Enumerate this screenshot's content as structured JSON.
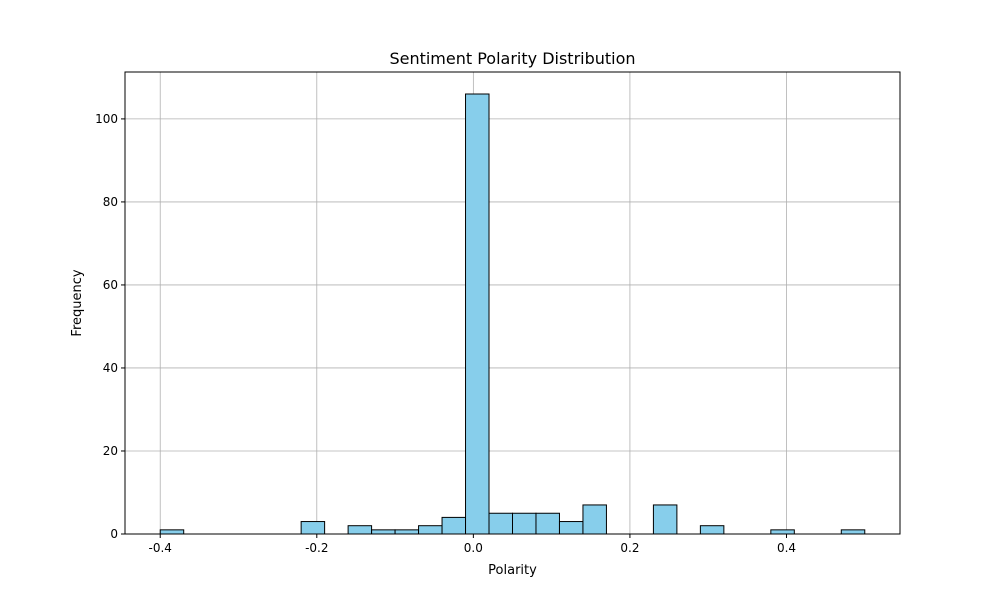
{
  "chart_data": {
    "type": "bar",
    "title": "Sentiment Polarity Distribution",
    "xlabel": "Polarity",
    "ylabel": "Frequency",
    "xlim": [
      -0.445,
      0.545
    ],
    "ylim": [
      0,
      111.3
    ],
    "xticks": [
      -0.4,
      -0.2,
      0.0,
      0.2,
      0.4
    ],
    "xtick_labels": [
      "-0.4",
      "-0.2",
      "0.0",
      "0.2",
      "0.4"
    ],
    "yticks": [
      0,
      20,
      40,
      60,
      80,
      100
    ],
    "ytick_labels": [
      "0",
      "20",
      "40",
      "60",
      "80",
      "100"
    ],
    "grid": true,
    "bar_color": "#87CEEB",
    "edge_color": "#000000",
    "bins": [
      {
        "x0": -0.4,
        "x1": -0.37,
        "value": 1
      },
      {
        "x0": -0.37,
        "x1": -0.34,
        "value": 0
      },
      {
        "x0": -0.34,
        "x1": -0.31,
        "value": 0
      },
      {
        "x0": -0.31,
        "x1": -0.28,
        "value": 0
      },
      {
        "x0": -0.28,
        "x1": -0.25,
        "value": 0
      },
      {
        "x0": -0.25,
        "x1": -0.22,
        "value": 0
      },
      {
        "x0": -0.22,
        "x1": -0.19,
        "value": 3
      },
      {
        "x0": -0.19,
        "x1": -0.16,
        "value": 0
      },
      {
        "x0": -0.16,
        "x1": -0.13,
        "value": 2
      },
      {
        "x0": -0.13,
        "x1": -0.1,
        "value": 1
      },
      {
        "x0": -0.1,
        "x1": -0.07,
        "value": 1
      },
      {
        "x0": -0.07,
        "x1": -0.04,
        "value": 2
      },
      {
        "x0": -0.04,
        "x1": -0.01,
        "value": 4
      },
      {
        "x0": -0.01,
        "x1": 0.02,
        "value": 106
      },
      {
        "x0": 0.02,
        "x1": 0.05,
        "value": 5
      },
      {
        "x0": 0.05,
        "x1": 0.08,
        "value": 5
      },
      {
        "x0": 0.08,
        "x1": 0.11,
        "value": 5
      },
      {
        "x0": 0.11,
        "x1": 0.14,
        "value": 3
      },
      {
        "x0": 0.14,
        "x1": 0.17,
        "value": 7
      },
      {
        "x0": 0.17,
        "x1": 0.2,
        "value": 0
      },
      {
        "x0": 0.2,
        "x1": 0.23,
        "value": 0
      },
      {
        "x0": 0.23,
        "x1": 0.26,
        "value": 7
      },
      {
        "x0": 0.26,
        "x1": 0.29,
        "value": 0
      },
      {
        "x0": 0.29,
        "x1": 0.32,
        "value": 2
      },
      {
        "x0": 0.32,
        "x1": 0.35,
        "value": 0
      },
      {
        "x0": 0.35,
        "x1": 0.38,
        "value": 0
      },
      {
        "x0": 0.38,
        "x1": 0.41,
        "value": 1
      },
      {
        "x0": 0.41,
        "x1": 0.44,
        "value": 0
      },
      {
        "x0": 0.44,
        "x1": 0.47,
        "value": 0
      },
      {
        "x0": 0.47,
        "x1": 0.5,
        "value": 1
      }
    ]
  }
}
